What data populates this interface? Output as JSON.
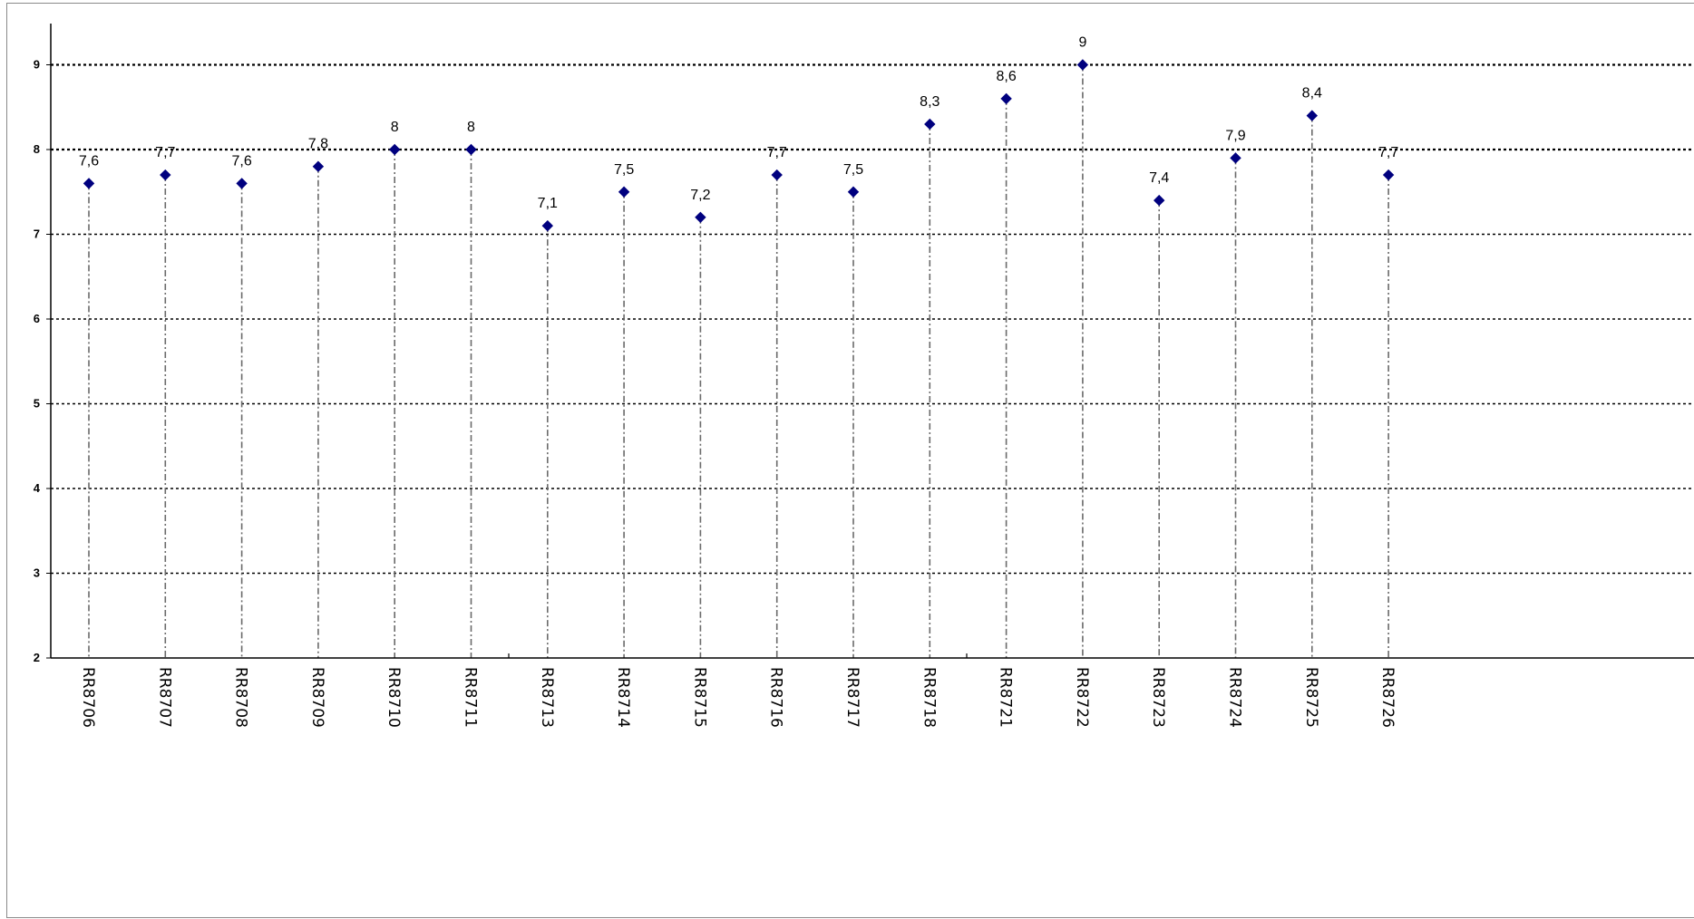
{
  "chart_data": {
    "type": "scatter",
    "title": "",
    "xlabel": "",
    "ylabel": "",
    "ylim": [
      2,
      9.5
    ],
    "yticks": [
      2,
      3,
      4,
      5,
      6,
      7,
      8,
      9
    ],
    "categories": [
      "RR8706",
      "RR8707",
      "RR8708",
      "RR8709",
      "RR8710",
      "RR8711",
      "RR8713",
      "RR8714",
      "RR8715",
      "RR8716",
      "RR8717",
      "RR8718",
      "RR8721",
      "RR8722",
      "RR8723",
      "RR8724",
      "RR8725",
      "RR8726"
    ],
    "values": [
      7.6,
      7.7,
      7.6,
      7.8,
      8,
      8,
      7.1,
      7.5,
      7.2,
      7.7,
      7.5,
      8.3,
      8.6,
      9,
      7.4,
      7.9,
      8.4,
      7.7
    ],
    "value_labels": [
      "7,6",
      "7,7",
      "7,6",
      "7,8",
      "8",
      "8",
      "7,1",
      "7,5",
      "7,2",
      "7,7",
      "7,5",
      "8,3",
      "8,6",
      "9",
      "7,4",
      "7,9",
      "8,4",
      "7,7"
    ],
    "grid": "horizontal-dotted",
    "drop_lines": "dash-dot",
    "marker": "diamond",
    "colors": {
      "marker": "#00007f",
      "grid": "#000000",
      "dropline": "#6a6a6a",
      "axis": "#000000"
    }
  }
}
